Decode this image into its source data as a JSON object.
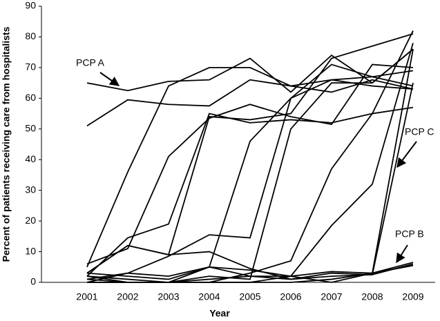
{
  "chart_data": {
    "type": "line",
    "x_label": "Year",
    "y_label": "Percent of patients receiving care from hospitalists",
    "categories": [
      "2001",
      "2002",
      "2003",
      "2004",
      "2005",
      "2006",
      "2007",
      "2008",
      "2009"
    ],
    "ylim": [
      0,
      90
    ],
    "yticks": [
      0,
      10,
      20,
      30,
      40,
      50,
      60,
      70,
      80,
      90
    ],
    "annotations": [
      "PCP A",
      "PCP B",
      "PCP C"
    ],
    "series": [
      {
        "color": "#000000",
        "values": [
          65,
          62.5,
          65.5,
          66,
          73,
          62,
          74,
          65,
          76
        ]
      },
      {
        "color": "#000000",
        "values": [
          51,
          59.5,
          58,
          57.5,
          66,
          64,
          62,
          66,
          63
        ]
      },
      {
        "color": "#000000",
        "values": [
          5,
          36,
          64,
          70,
          70,
          64,
          66,
          64,
          63
        ]
      },
      {
        "color": "#000000",
        "values": [
          3,
          12,
          9,
          54,
          53,
          55,
          73,
          77,
          81
        ]
      },
      {
        "color": "#000000",
        "values": [
          2,
          14.5,
          19,
          55,
          52,
          53,
          52,
          55,
          57
        ]
      },
      {
        "color": "#000000",
        "values": [
          6,
          11,
          41,
          53.5,
          58,
          54,
          51.5,
          71,
          70
        ]
      },
      {
        "color": "#000000",
        "values": [
          1,
          3,
          8.5,
          15.5,
          14.5,
          60,
          71,
          67,
          64
        ]
      },
      {
        "color": "#000000",
        "values": [
          0,
          3,
          2,
          5,
          46,
          60,
          66,
          67,
          69
        ]
      },
      {
        "color": "#000000",
        "values": [
          0,
          0,
          0,
          0,
          3,
          7,
          37,
          55,
          82
        ]
      },
      {
        "color": "#000000",
        "values": [
          2,
          0,
          0,
          2,
          1,
          50,
          65,
          65,
          76
        ]
      },
      {
        "color": "#000000",
        "values": [
          0,
          0,
          0,
          0,
          0,
          2,
          18.5,
          32,
          78
        ]
      },
      {
        "color": "#000000",
        "values": [
          1,
          0,
          0,
          5,
          4,
          2,
          0,
          3,
          76
        ]
      },
      {
        "color": "#000000",
        "values": [
          3,
          2,
          1,
          5,
          2,
          1,
          3,
          2.5,
          65
        ]
      },
      {
        "color": "#000000",
        "values": [
          0,
          0,
          0,
          0,
          0,
          0,
          1,
          3,
          6.5
        ]
      },
      {
        "color": "#000000",
        "values": [
          2,
          1,
          0,
          1,
          2,
          2,
          3.5,
          3,
          5.5
        ]
      },
      {
        "color": "#000000",
        "values": [
          3,
          12,
          9,
          10,
          4.5,
          1,
          2,
          2.5,
          6
        ]
      }
    ]
  }
}
